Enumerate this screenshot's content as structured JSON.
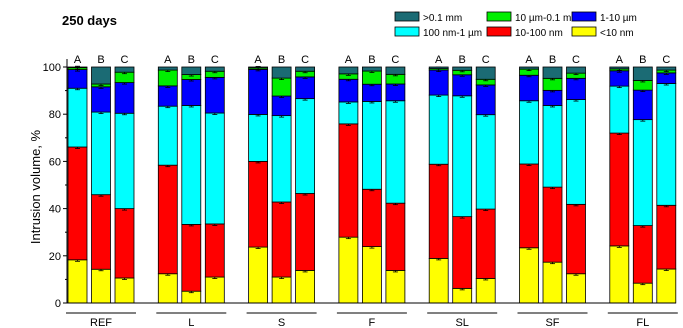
{
  "chart_data": {
    "type": "bar",
    "stacked": true,
    "title": "250 days",
    "ylabel": "Intrusion volume, %",
    "xlabel": "",
    "ylim": [
      0,
      100
    ],
    "yticks": [
      0,
      20,
      40,
      60,
      80,
      100
    ],
    "error_bars": true,
    "groups": [
      "REF",
      "L",
      "S",
      "F",
      "SL",
      "SF",
      "FL"
    ],
    "subcategories": [
      "A",
      "B",
      "C"
    ],
    "legend": {
      "placement": "top-right",
      "columns": 3
    },
    "series": [
      {
        "name": "<10 nm",
        "color": "#ffff00",
        "values": [
          [
            18.3,
            14.3,
            10.6
          ],
          [
            12.4,
            5.0,
            11.0
          ],
          [
            23.7,
            11.0,
            13.8
          ],
          [
            27.9,
            23.9,
            13.8
          ],
          [
            18.9,
            6.2,
            10.4
          ],
          [
            23.4,
            17.3,
            12.4
          ],
          [
            24.2,
            8.4,
            14.4
          ]
        ]
      },
      {
        "name": "10-100 nm",
        "color": "#ff0000",
        "values": [
          [
            47.8,
            31.6,
            29.4
          ],
          [
            46.0,
            28.3,
            22.5
          ],
          [
            36.3,
            31.8,
            32.6
          ],
          [
            48.0,
            24.3,
            28.5
          ],
          [
            39.9,
            30.4,
            29.4
          ],
          [
            35.5,
            31.8,
            29.4
          ],
          [
            47.8,
            24.4,
            27.0
          ]
        ]
      },
      {
        "name": "100 nm-1 µm",
        "color": "#00ffff",
        "values": [
          [
            24.9,
            35.0,
            40.4
          ],
          [
            25.0,
            50.4,
            47.0
          ],
          [
            19.9,
            36.6,
            40.2
          ],
          [
            9.3,
            37.2,
            43.4
          ],
          [
            29.3,
            51.2,
            40.0
          ],
          [
            26.8,
            34.6,
            44.4
          ],
          [
            19.9,
            44.9,
            51.6
          ]
        ]
      },
      {
        "name": "1-10 µm",
        "color": "#0000ff",
        "values": [
          [
            7.9,
            10.7,
            13.0
          ],
          [
            8.6,
            11.0,
            15.1
          ],
          [
            19.1,
            8.3,
            9.2
          ],
          [
            9.6,
            7.3,
            7.1
          ],
          [
            10.6,
            8.9,
            12.6
          ],
          [
            10.8,
            6.4,
            9.0
          ],
          [
            6.5,
            12.5,
            4.5
          ]
        ]
      },
      {
        "name": "10 µm-0.1 mm",
        "color": "#00ee00",
        "values": [
          [
            0.8,
            1.2,
            4.4
          ],
          [
            6.7,
            2.1,
            2.6
          ],
          [
            0.6,
            7.6,
            2.4
          ],
          [
            2.3,
            5.6,
            4.1
          ],
          [
            0.6,
            1.9,
            2.4
          ],
          [
            2.6,
            5.1,
            2.2
          ],
          [
            0.8,
            4.1,
            1.2
          ]
        ]
      },
      {
        "name": ">0.1 mm",
        "color": "#1b6b74",
        "values": [
          [
            0.3,
            7.2,
            2.2
          ],
          [
            1.3,
            3.2,
            1.8
          ],
          [
            0.4,
            4.7,
            1.8
          ],
          [
            2.9,
            1.7,
            3.1
          ],
          [
            0.7,
            1.4,
            5.2
          ],
          [
            0.9,
            4.8,
            2.6
          ],
          [
            0.8,
            5.7,
            1.3
          ]
        ]
      }
    ]
  }
}
